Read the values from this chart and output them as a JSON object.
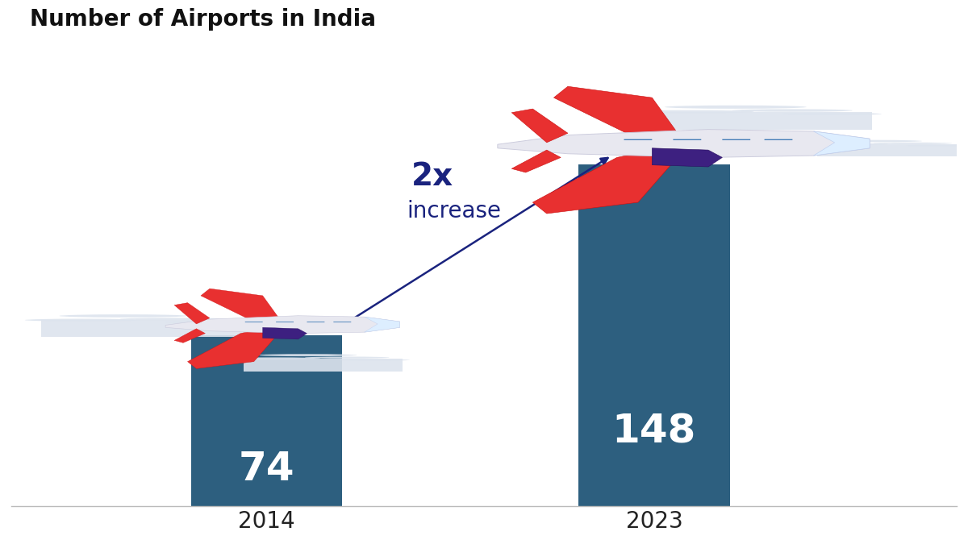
{
  "title": "Number of Airports in India",
  "categories": [
    "2014",
    "2023"
  ],
  "values": [
    74,
    148
  ],
  "bar_color": "#2d5f7f",
  "bar_positions": [
    0.27,
    0.68
  ],
  "bar_width": 0.16,
  "value_labels": [
    "74",
    "148"
  ],
  "value_label_color": "#ffffff",
  "value_label_fontsize": 36,
  "title_fontsize": 20,
  "xlabel_fontsize": 20,
  "annotation_2x": "2x",
  "annotation_increase": "increase",
  "annotation_fontsize_2x": 28,
  "annotation_fontsize_inc": 20,
  "annotation_color": "#1a237e",
  "background_color": "#ffffff",
  "ylim": [
    0,
    200
  ],
  "xlim": [
    0.0,
    1.0
  ],
  "arrow_color": "#1a237e"
}
